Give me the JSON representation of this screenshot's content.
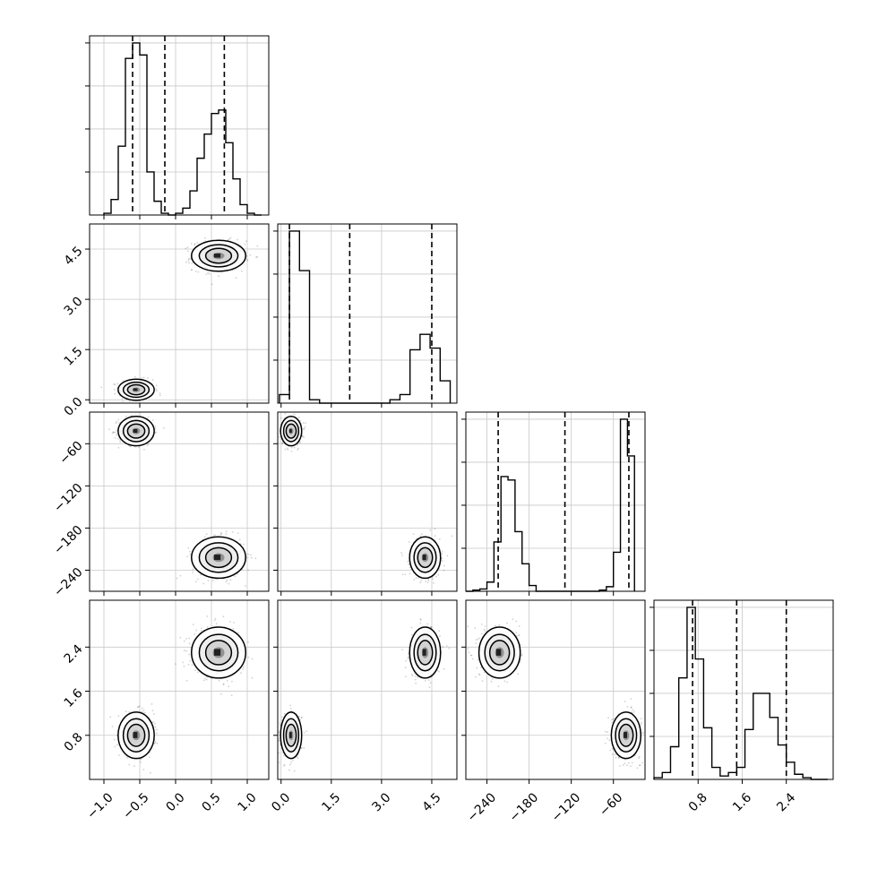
{
  "chart_data": {
    "type": "corner",
    "grid": true,
    "variables": [
      {
        "index": 0,
        "range": [
          -1.2,
          1.3
        ],
        "ticks": [
          -1.0,
          -0.5,
          0.0,
          0.5,
          1.0
        ],
        "tick_labels": [
          "−1.0",
          "−0.5",
          "0.0",
          "0.5",
          "1.0"
        ],
        "quantiles": [
          -0.6,
          -0.15,
          0.68
        ],
        "histogram": {
          "bin_edges": [
            -1.0,
            -0.9,
            -0.8,
            -0.7,
            -0.6,
            -0.5,
            -0.4,
            -0.3,
            -0.2,
            -0.1,
            0.0,
            0.1,
            0.2,
            0.3,
            0.4,
            0.5,
            0.6,
            0.7,
            0.8,
            0.9,
            1.0,
            1.1,
            1.2
          ],
          "counts": [
            1,
            9,
            40,
            91,
            100,
            93,
            25,
            8,
            1,
            0,
            1,
            4,
            14,
            33,
            47,
            59,
            61,
            42,
            21,
            6,
            1,
            0
          ]
        }
      },
      {
        "index": 1,
        "range": [
          -0.1,
          5.25
        ],
        "ticks": [
          0.0,
          1.5,
          3.0,
          4.5
        ],
        "tick_labels": [
          "0.0",
          "1.5",
          "3.0",
          "4.5"
        ],
        "quantiles": [
          0.25,
          2.05,
          4.5
        ],
        "histogram": {
          "bin_edges": [
            -0.05,
            0.25,
            0.55,
            0.85,
            1.15,
            1.45,
            1.75,
            2.05,
            2.35,
            2.65,
            2.95,
            3.25,
            3.55,
            3.85,
            4.15,
            4.45,
            4.75,
            5.05
          ],
          "counts": [
            5,
            100,
            77,
            2,
            0,
            0,
            0,
            0,
            0,
            0,
            0,
            2,
            5,
            31,
            40,
            32,
            13
          ]
        }
      },
      {
        "index": 2,
        "range": [
          -270,
          -15
        ],
        "ticks": [
          -240,
          -180,
          -120,
          -60
        ],
        "tick_labels": [
          "−240",
          "−180",
          "−120",
          "−60"
        ],
        "quantiles": [
          -224,
          -129,
          -38
        ],
        "histogram": {
          "bin_edges": [
            -270,
            -260,
            -250,
            -240,
            -230,
            -220,
            -210,
            -200,
            -190,
            -180,
            -170,
            -160,
            -150,
            -140,
            -130,
            -120,
            -110,
            -100,
            -90,
            -80,
            -70,
            -60,
            -50,
            -40,
            -30
          ],
          "counts": [
            0,
            1,
            2,
            8,
            43,
            100,
            97,
            52,
            24,
            5,
            0,
            0,
            0,
            0,
            0,
            0,
            0,
            0,
            0,
            1,
            4,
            34,
            150,
            118
          ]
        }
      },
      {
        "index": 3,
        "range": [
          0.0,
          3.25
        ],
        "ticks": [
          0.8,
          1.6,
          2.4
        ],
        "tick_labels": [
          "0.8",
          "1.6",
          "2.4"
        ],
        "quantiles": [
          0.7,
          1.5,
          2.4
        ],
        "histogram": {
          "bin_edges": [
            0.0,
            0.15,
            0.3,
            0.45,
            0.6,
            0.75,
            0.9,
            1.05,
            1.2,
            1.35,
            1.5,
            1.65,
            1.8,
            1.95,
            2.1,
            2.25,
            2.4,
            2.55,
            2.7,
            2.85,
            3.0,
            3.15
          ],
          "counts": [
            1,
            4,
            19,
            59,
            100,
            70,
            30,
            7,
            2,
            4,
            7,
            29,
            50,
            50,
            36,
            20,
            10,
            3,
            1,
            0,
            0
          ]
        }
      }
    ],
    "clusters": [
      {
        "center": [
          -0.55,
          0.3,
          -42,
          0.8
        ],
        "sd": [
          0.12,
          0.15,
          10,
          0.2
        ]
      },
      {
        "center": [
          0.6,
          4.3,
          -222,
          2.3
        ],
        "sd": [
          0.18,
          0.22,
          14,
          0.22
        ]
      }
    ]
  }
}
